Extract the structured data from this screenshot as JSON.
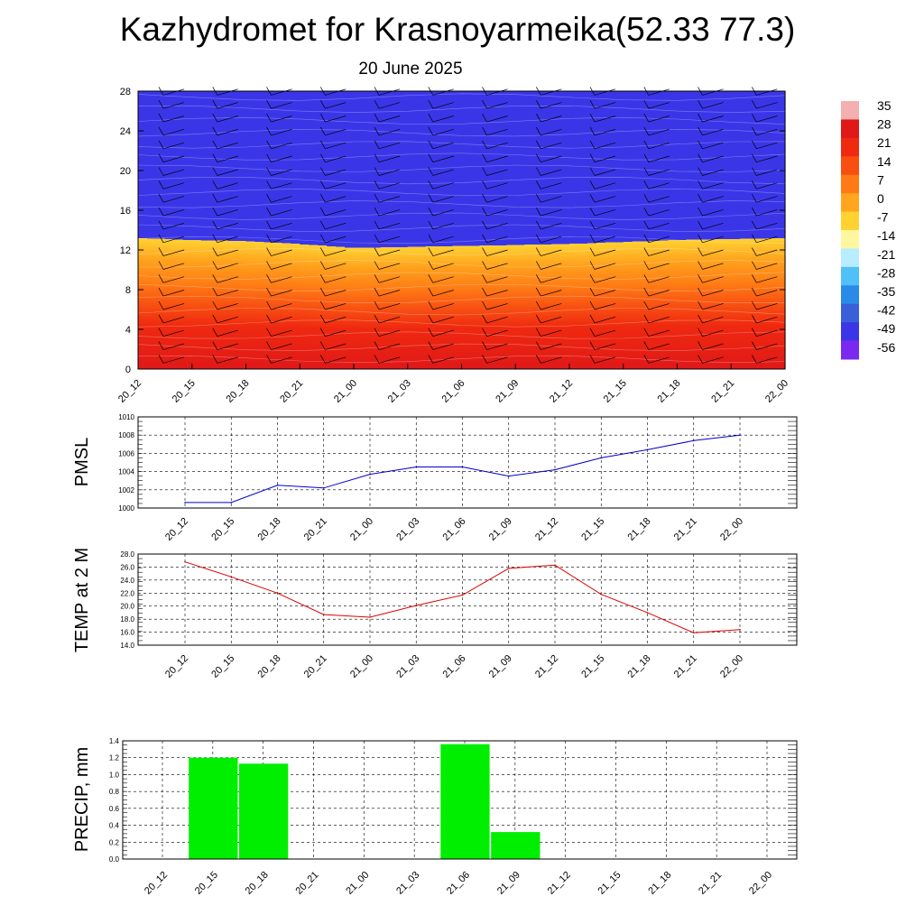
{
  "header": {
    "title": "Kazhydromet for Krasnoyarmeika(52.33 77.3)",
    "subtitle": "20 June 2025"
  },
  "chart_data": [
    {
      "type": "heatmap",
      "title": "Kazhydromet for Krasnoyarmeika(52.33 77.3)",
      "subtitle": "20 June 2025",
      "x_ticks": [
        "20_12",
        "20_15",
        "20_18",
        "20_21",
        "21_00",
        "21_03",
        "21_06",
        "21_09",
        "21_12",
        "21_15",
        "21_18",
        "21_21",
        "22_00"
      ],
      "y_ticks": [
        0,
        4,
        8,
        12,
        16,
        20,
        24,
        28
      ],
      "ylim": [
        0,
        28
      ],
      "freezing_level": [
        13.2,
        13.0,
        12.9,
        12.6,
        12.2,
        12.3,
        12.4,
        12.5,
        12.6,
        12.8,
        13.0,
        13.1,
        13.2
      ],
      "colorbar": {
        "labels": [
          "35",
          "28",
          "21",
          "14",
          "7",
          "0",
          "-7",
          "-14",
          "-21",
          "-28",
          "-35",
          "-42",
          "-49",
          "-56"
        ],
        "colors": [
          "#f4b0b0",
          "#e01818",
          "#f02a10",
          "#f84e10",
          "#ff7a14",
          "#ffa61e",
          "#ffd232",
          "#fff7a0",
          "#b8ecff",
          "#50c0f8",
          "#2a8ae8",
          "#3a60d8",
          "#3a36e8",
          "#7a2af0"
        ]
      }
    },
    {
      "type": "line",
      "ylabel": "PMSL",
      "x": [
        "20_12",
        "20_15",
        "20_18",
        "20_21",
        "21_00",
        "21_03",
        "21_06",
        "21_09",
        "21_12",
        "21_15",
        "21_18",
        "21_21",
        "22_00"
      ],
      "values": [
        1000.6,
        1000.6,
        1002.5,
        1002.2,
        1003.7,
        1004.5,
        1004.5,
        1003.5,
        1004.2,
        1005.5,
        1006.4,
        1007.4,
        1008.0
      ],
      "ylim": [
        1000,
        1010
      ],
      "y_ticks": [
        "1000",
        "1002",
        "1004",
        "1006",
        "1008",
        "1010"
      ],
      "color": "#0000cc",
      "grid": true
    },
    {
      "type": "line",
      "ylabel": "TEMP at 2 M",
      "x": [
        "20_12",
        "20_15",
        "20_18",
        "20_21",
        "21_00",
        "21_03",
        "21_06",
        "21_09",
        "21_12",
        "21_15",
        "21_18",
        "21_21",
        "22_00"
      ],
      "values": [
        26.8,
        24.5,
        22.0,
        18.7,
        18.3,
        20.1,
        21.7,
        25.8,
        26.3,
        21.8,
        19.0,
        15.9,
        16.4
      ],
      "ylim": [
        14,
        28
      ],
      "y_ticks": [
        "14.0",
        "16.0",
        "18.0",
        "20.0",
        "22.0",
        "24.0",
        "26.0",
        "28.0"
      ],
      "color": "#dd0000",
      "grid": true
    },
    {
      "type": "bar",
      "ylabel": "PRECIP, mm",
      "categories": [
        "20_12",
        "20_15",
        "20_18",
        "20_21",
        "21_00",
        "21_03",
        "21_06",
        "21_09",
        "21_12",
        "21_15",
        "21_18",
        "21_21",
        "22_00"
      ],
      "values": [
        0,
        1.2,
        1.13,
        0,
        0,
        0,
        1.36,
        0.32,
        0,
        0,
        0,
        0,
        0
      ],
      "ylim": [
        0,
        1.4
      ],
      "y_ticks": [
        "0.0",
        "0.2",
        "0.4",
        "0.6",
        "0.8",
        "1.0",
        "1.2",
        "1.4"
      ],
      "color": "#00ee00",
      "grid": true
    }
  ]
}
